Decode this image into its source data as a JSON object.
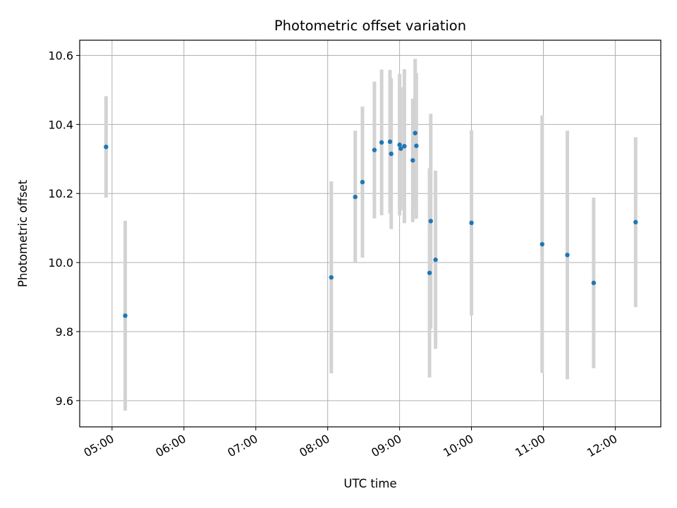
{
  "chart_data": {
    "type": "scatter",
    "title": "Photometric offset variation",
    "xlabel": "UTC time",
    "ylabel": "Photometric offset",
    "x_axis": "time",
    "xlim": [
      "04:33",
      "12:38"
    ],
    "ylim": [
      9.524,
      10.644
    ],
    "x_ticks": [
      "05:00",
      "06:00",
      "07:00",
      "08:00",
      "09:00",
      "10:00",
      "11:00",
      "12:00"
    ],
    "y_ticks": [
      9.6,
      9.8,
      10.0,
      10.2,
      10.4,
      10.6
    ],
    "y_tick_labels": [
      "9.6",
      "9.8",
      "10.0",
      "10.2",
      "10.4",
      "10.6"
    ],
    "grid": true,
    "point_color": "#1f77b4",
    "errorbar_color": "#d3d3d3",
    "points": [
      {
        "t": "04:55",
        "y": 10.335,
        "err": 0.147
      },
      {
        "t": "05:11",
        "y": 9.846,
        "err": 0.275
      },
      {
        "t": "08:03",
        "y": 9.957,
        "err": 0.278
      },
      {
        "t": "08:23",
        "y": 10.19,
        "err": 0.192
      },
      {
        "t": "08:29",
        "y": 10.233,
        "err": 0.219
      },
      {
        "t": "08:39",
        "y": 10.326,
        "err": 0.198
      },
      {
        "t": "08:45",
        "y": 10.348,
        "err": 0.211
      },
      {
        "t": "08:52",
        "y": 10.35,
        "err": 0.208
      },
      {
        "t": "08:53",
        "y": 10.315,
        "err": 0.218
      },
      {
        "t": "09:00",
        "y": 10.341,
        "err": 0.205
      },
      {
        "t": "09:01",
        "y": 10.33,
        "err": 0.178
      },
      {
        "t": "09:04",
        "y": 10.337,
        "err": 0.223
      },
      {
        "t": "09:11",
        "y": 10.296,
        "err": 0.179
      },
      {
        "t": "09:13",
        "y": 10.375,
        "err": 0.215
      },
      {
        "t": "09:14",
        "y": 10.338,
        "err": 0.211
      },
      {
        "t": "09:25",
        "y": 9.97,
        "err": 0.303
      },
      {
        "t": "09:26",
        "y": 10.12,
        "err": 0.311
      },
      {
        "t": "09:30",
        "y": 10.008,
        "err": 0.258
      },
      {
        "t": "10:00",
        "y": 10.115,
        "err": 0.268
      },
      {
        "t": "10:59",
        "y": 10.053,
        "err": 0.373
      },
      {
        "t": "11:20",
        "y": 10.022,
        "err": 0.36
      },
      {
        "t": "11:42",
        "y": 9.941,
        "err": 0.247
      },
      {
        "t": "12:17",
        "y": 10.117,
        "err": 0.246
      }
    ]
  }
}
